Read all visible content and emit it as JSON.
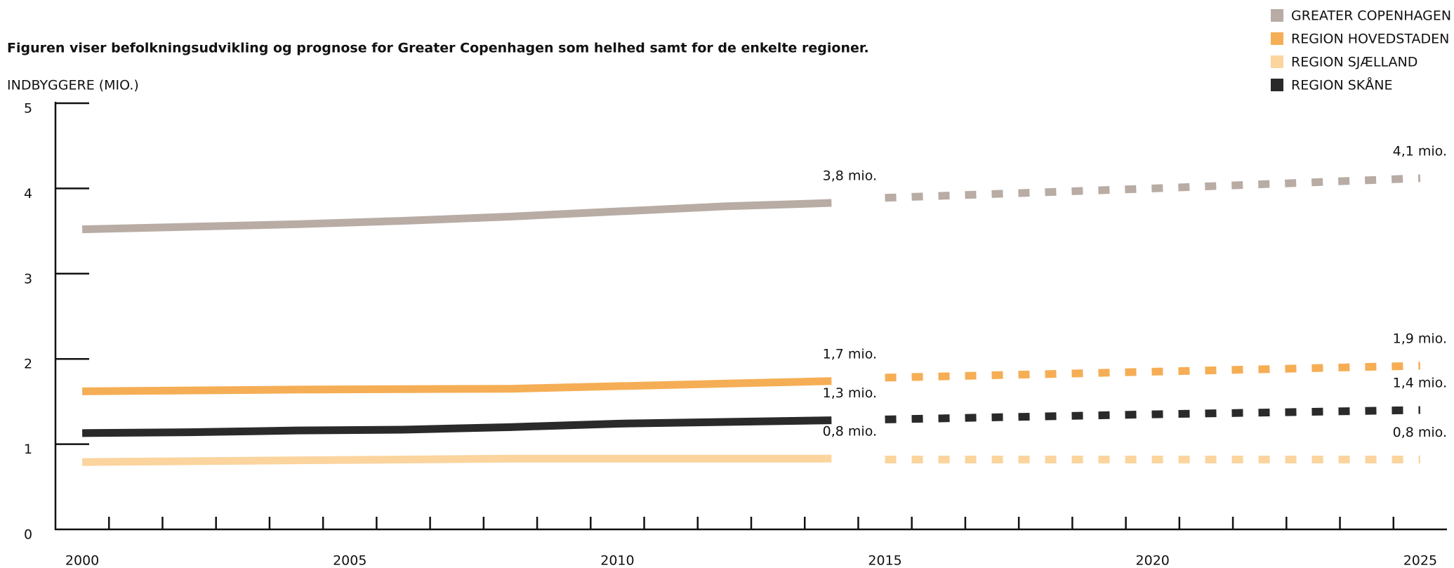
{
  "chart_data": {
    "type": "line",
    "title": "Figuren viser befolkningsudvikling og prognose for Greater Copenhagen som helhed samt for de enkelte regioner.",
    "y_label": "INDBYGGERE (MIO.)",
    "x": [
      2000,
      2002,
      2004,
      2006,
      2008,
      2010,
      2012,
      2014,
      2015,
      2020,
      2025
    ],
    "forecast_start": 2015,
    "series": [
      {
        "name": "GREATER COPENHAGEN",
        "color": "#b8aca5",
        "values": [
          3.52,
          3.55,
          3.58,
          3.62,
          3.67,
          3.73,
          3.79,
          3.83,
          3.89,
          4.0,
          4.12
        ],
        "value_labels": [
          null,
          null,
          null,
          null,
          null,
          null,
          null,
          "3,8 mio.",
          null,
          null,
          "4,1 mio."
        ]
      },
      {
        "name": "REGION HOVEDSTADEN",
        "color": "#f5ae55",
        "values": [
          1.62,
          1.63,
          1.64,
          1.645,
          1.65,
          1.68,
          1.71,
          1.74,
          1.78,
          1.85,
          1.92
        ],
        "value_labels": [
          null,
          null,
          null,
          null,
          null,
          null,
          null,
          "1,7 mio.",
          null,
          null,
          "1,9 mio."
        ]
      },
      {
        "name": "REGION SJÆLLAND",
        "color": "#fbd49e",
        "values": [
          0.79,
          0.8,
          0.81,
          0.82,
          0.83,
          0.83,
          0.83,
          0.83,
          0.82,
          0.82,
          0.82
        ],
        "value_labels": [
          null,
          null,
          null,
          null,
          null,
          null,
          null,
          "0,8 mio.",
          null,
          null,
          "0,8 mio."
        ]
      },
      {
        "name": "REGION SKÅNE",
        "color": "#2a2a2a",
        "values": [
          1.13,
          1.14,
          1.16,
          1.17,
          1.2,
          1.24,
          1.26,
          1.28,
          1.29,
          1.35,
          1.4
        ],
        "value_labels": [
          null,
          null,
          null,
          null,
          null,
          null,
          null,
          "1,3 mio.",
          null,
          null,
          "1,4 mio."
        ]
      }
    ],
    "xlim": [
      1999.5,
      2025.5
    ],
    "xticks": [
      2000,
      2005,
      2010,
      2015,
      2020,
      2025
    ],
    "xminorticks": [
      2000.5,
      2001.5,
      2002.5,
      2003.5,
      2004.5,
      2005.5,
      2006.5,
      2007.5,
      2008.5,
      2009.5,
      2010.5,
      2011.5,
      2012.5,
      2013.5,
      2014.5,
      2015.5,
      2016.5,
      2017.5,
      2018.5,
      2019.5,
      2020.5,
      2021.5,
      2022.5,
      2023.5,
      2024.5
    ],
    "ylim": [
      0,
      5
    ],
    "yticks": [
      0,
      1,
      2,
      3,
      4,
      5
    ],
    "grid": false,
    "legend": "top-right"
  }
}
